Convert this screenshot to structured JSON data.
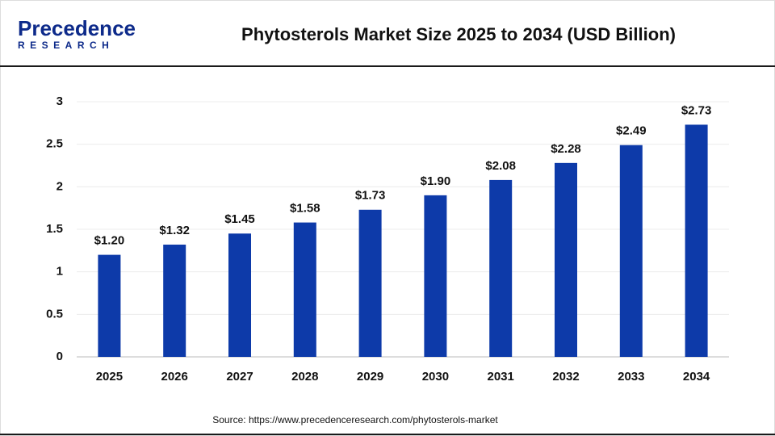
{
  "logo": {
    "name": "Precedence",
    "tagline": "RESEARCH"
  },
  "chart_data": {
    "type": "bar",
    "title": "Phytosterols Market Size 2025 to 2034 (USD Billion)",
    "categories": [
      "2025",
      "2026",
      "2027",
      "2028",
      "2029",
      "2030",
      "2031",
      "2032",
      "2033",
      "2034"
    ],
    "values": [
      1.2,
      1.32,
      1.45,
      1.58,
      1.73,
      1.9,
      2.08,
      2.28,
      2.49,
      2.73
    ],
    "value_labels": [
      "$1.20",
      "$1.32",
      "$1.45",
      "$1.58",
      "$1.73",
      "$1.90",
      "$2.08",
      "$2.28",
      "$2.49",
      "$2.73"
    ],
    "color": "#0d3aa9",
    "ylim": [
      0,
      3
    ],
    "yticks": [
      0,
      0.5,
      1,
      1.5,
      2,
      2.5,
      3
    ],
    "grid": true,
    "source": "Source: https://www.precedenceresearch.com/phytosterols-market"
  }
}
